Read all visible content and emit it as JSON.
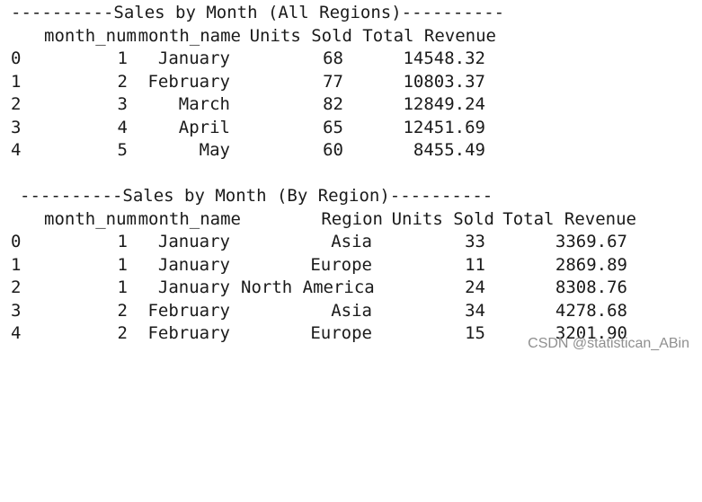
{
  "section1": {
    "title": "----------Sales by Month (All Regions)----------",
    "columns": [
      "month_num",
      "month_name",
      "Units Sold",
      "Total Revenue"
    ],
    "rows": [
      {
        "index": "0",
        "month_num": "1",
        "month_name": "January",
        "units_sold": "68",
        "total_revenue": "14548.32"
      },
      {
        "index": "1",
        "month_num": "2",
        "month_name": "February",
        "units_sold": "77",
        "total_revenue": "10803.37"
      },
      {
        "index": "2",
        "month_num": "3",
        "month_name": "March",
        "units_sold": "82",
        "total_revenue": "12849.24"
      },
      {
        "index": "3",
        "month_num": "4",
        "month_name": "April",
        "units_sold": "65",
        "total_revenue": "12451.69"
      },
      {
        "index": "4",
        "month_num": "5",
        "month_name": "May",
        "units_sold": "60",
        "total_revenue": "8455.49"
      }
    ]
  },
  "section2": {
    "title": "----------Sales by Month (By Region)----------",
    "columns": [
      "month_num",
      "month_name",
      "Region",
      "Units Sold",
      "Total Revenue"
    ],
    "rows": [
      {
        "index": "0",
        "month_num": "1",
        "month_name": "January",
        "region": "Asia",
        "units_sold": "33",
        "total_revenue": "3369.67"
      },
      {
        "index": "1",
        "month_num": "1",
        "month_name": "January",
        "region": "Europe",
        "units_sold": "11",
        "total_revenue": "2869.89"
      },
      {
        "index": "2",
        "month_num": "1",
        "month_name": "January",
        "region": "North America",
        "units_sold": "24",
        "total_revenue": "8308.76"
      },
      {
        "index": "3",
        "month_num": "2",
        "month_name": "February",
        "region": "Asia",
        "units_sold": "34",
        "total_revenue": "4278.68"
      },
      {
        "index": "4",
        "month_num": "2",
        "month_name": "February",
        "region": "Europe",
        "units_sold": "15",
        "total_revenue": "3201.90"
      }
    ]
  },
  "watermark": "CSDN @statistican_ABin"
}
